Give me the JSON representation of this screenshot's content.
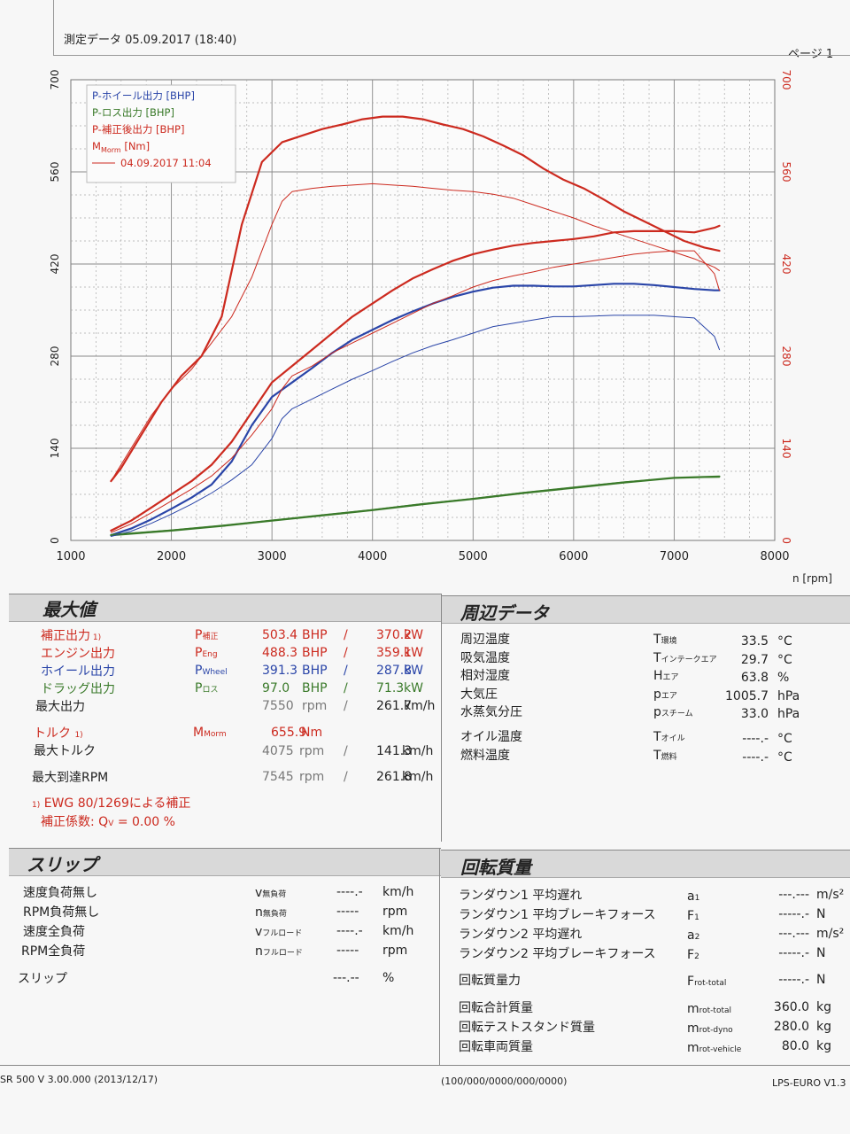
{
  "header": {
    "measure_date": "測定データ 05.09.2017 (18:40)",
    "page": "ページ 1"
  },
  "chart_data": {
    "type": "line",
    "xlabel": "n [rpm]",
    "xlim": [
      1000,
      8000
    ],
    "x_ticks": [
      "1000",
      "2000",
      "3000",
      "4000",
      "5000",
      "6000",
      "7000",
      "8000"
    ],
    "ylim_left": [
      0,
      700
    ],
    "y_ticks_left": [
      "0",
      "140",
      "280",
      "420",
      "560",
      "700"
    ],
    "ylim_right": [
      0,
      700
    ],
    "y_ticks_right": [
      "0",
      "140",
      "280",
      "420",
      "560",
      "700"
    ],
    "grid": true,
    "legend_position": "top-left",
    "legend": [
      {
        "label": "P-ホイール出力 [BHP]",
        "color": "#2a45a8"
      },
      {
        "label": "P-ロス出力 [BHP]",
        "color": "#3a7a2a"
      },
      {
        "label": "P-補正後出力 [BHP]",
        "color": "#cc2a1f"
      },
      {
        "label": "M",
        "sub": "Morm",
        "suffix": " [Nm]",
        "color": "#cc2a1f"
      },
      {
        "label": "04.09.2017 11:04",
        "color": "#cc2a1f",
        "line": true
      }
    ],
    "series": [
      {
        "name": "P-補正後出力 [BHP]",
        "color": "#cc2a1f",
        "width": 2.2,
        "x": [
          1400,
          1600,
          1800,
          2000,
          2200,
          2400,
          2600,
          2800,
          3000,
          3200,
          3400,
          3600,
          3800,
          4000,
          4200,
          4400,
          4600,
          4800,
          5000,
          5200,
          5400,
          5600,
          5800,
          6000,
          6200,
          6400,
          6600,
          6800,
          7000,
          7200,
          7400,
          7450
        ],
        "y": [
          15,
          30,
          50,
          70,
          90,
          115,
          150,
          195,
          240,
          265,
          290,
          315,
          340,
          360,
          380,
          398,
          412,
          425,
          435,
          442,
          448,
          452,
          455,
          458,
          462,
          468,
          470,
          470,
          470,
          468,
          475,
          478
        ]
      },
      {
        "name": "P-ホイール出力 [BHP]",
        "color": "#2a45a8",
        "width": 2.2,
        "x": [
          1400,
          1600,
          1800,
          2000,
          2200,
          2400,
          2600,
          2800,
          3000,
          3200,
          3400,
          3600,
          3800,
          4000,
          4200,
          4400,
          4600,
          4800,
          5000,
          5200,
          5400,
          5600,
          5800,
          6000,
          6200,
          6400,
          6600,
          6800,
          7000,
          7200,
          7400,
          7450
        ],
        "y": [
          8,
          18,
          32,
          48,
          65,
          85,
          120,
          175,
          218,
          240,
          262,
          285,
          305,
          320,
          335,
          348,
          360,
          370,
          378,
          384,
          387,
          387,
          386,
          386,
          388,
          390,
          390,
          388,
          385,
          382,
          380,
          380
        ]
      },
      {
        "name": "P-ロス出力 [BHP]",
        "color": "#3a7a2a",
        "width": 2.2,
        "x": [
          1400,
          2000,
          2500,
          3000,
          3500,
          4000,
          4500,
          5000,
          5500,
          6000,
          6500,
          7000,
          7450
        ],
        "y": [
          8,
          15,
          22,
          30,
          38,
          46,
          55,
          63,
          72,
          80,
          88,
          95,
          97
        ]
      },
      {
        "name": "M [Nm]",
        "color": "#cc2a1f",
        "width": 2.2,
        "x": [
          1400,
          1500,
          1700,
          1900,
          2100,
          2300,
          2500,
          2700,
          2900,
          3100,
          3300,
          3500,
          3700,
          3900,
          4100,
          4300,
          4500,
          4700,
          4900,
          5100,
          5300,
          5500,
          5700,
          5900,
          6100,
          6300,
          6500,
          6700,
          6900,
          7100,
          7300,
          7450
        ],
        "y": [
          90,
          110,
          160,
          210,
          250,
          280,
          340,
          480,
          575,
          605,
          615,
          625,
          632,
          640,
          644,
          644,
          640,
          632,
          625,
          614,
          600,
          585,
          565,
          548,
          535,
          518,
          500,
          485,
          470,
          455,
          445,
          440
        ]
      },
      {
        "name": "04.09.2017 11:04 P",
        "color": "#cc2a1f",
        "width": 1,
        "x": [
          1400,
          1600,
          1800,
          2000,
          2200,
          2400,
          2600,
          2800,
          3000,
          3100,
          3200,
          3400,
          3600,
          3800,
          4000,
          4200,
          4400,
          4600,
          4800,
          5000,
          5200,
          5400,
          5600,
          5800,
          6000,
          6200,
          6400,
          6600,
          6800,
          7000,
          7200,
          7400,
          7450
        ],
        "y": [
          12,
          25,
          42,
          60,
          78,
          98,
          125,
          160,
          200,
          230,
          250,
          265,
          285,
          300,
          315,
          330,
          345,
          360,
          372,
          385,
          395,
          402,
          408,
          415,
          420,
          425,
          430,
          435,
          438,
          440,
          440,
          405,
          380
        ]
      },
      {
        "name": "04.09.2017 11:04 Wheel",
        "color": "#2a45a8",
        "width": 1,
        "x": [
          1400,
          1600,
          1800,
          2000,
          2200,
          2400,
          2600,
          2800,
          3000,
          3100,
          3200,
          3400,
          3600,
          3800,
          4000,
          4200,
          4400,
          4600,
          4800,
          5000,
          5200,
          5400,
          5600,
          5800,
          6000,
          6200,
          6400,
          6600,
          6800,
          7000,
          7200,
          7400,
          7450
        ],
        "y": [
          6,
          14,
          26,
          40,
          55,
          72,
          92,
          115,
          155,
          185,
          200,
          215,
          230,
          245,
          258,
          272,
          285,
          296,
          305,
          315,
          325,
          330,
          335,
          340,
          340,
          341,
          342,
          342,
          342,
          340,
          338,
          310,
          290
        ]
      },
      {
        "name": "04.09.2017 11:04 Loss",
        "color": "#3a7a2a",
        "width": 1,
        "x": [
          1400,
          2000,
          2500,
          3000,
          3500,
          4000,
          4500,
          5000,
          5500,
          6000,
          6500,
          7000,
          7450
        ],
        "y": [
          9,
          16,
          23,
          31,
          39,
          47,
          56,
          64,
          73,
          81,
          89,
          95,
          96
        ]
      },
      {
        "name": "04.09.2017 11:04 M",
        "color": "#cc2a1f",
        "width": 1,
        "x": [
          1400,
          1600,
          1800,
          2000,
          2200,
          2400,
          2600,
          2800,
          3000,
          3100,
          3200,
          3400,
          3600,
          3800,
          4000,
          4200,
          4400,
          4600,
          4800,
          5000,
          5200,
          5400,
          5600,
          5800,
          6000,
          6200,
          6400,
          6600,
          6800,
          7000,
          7200,
          7400,
          7450
        ],
        "y": [
          90,
          140,
          190,
          230,
          260,
          300,
          340,
          400,
          480,
          515,
          530,
          535,
          538,
          540,
          542,
          540,
          538,
          535,
          532,
          530,
          526,
          520,
          510,
          500,
          490,
          478,
          468,
          458,
          448,
          438,
          428,
          415,
          410
        ]
      }
    ]
  },
  "max_values": {
    "title": "最大値",
    "rows": [
      {
        "label": "補正出力",
        "note": "1)",
        "sym": "P",
        "sym_sub": "補正",
        "v1": "503.4",
        "u1": "BHP",
        "sep": "/",
        "v2": "370.2",
        "u2": "kW",
        "color": "red"
      },
      {
        "label": "エンジン出力",
        "note": "",
        "sym": "P",
        "sym_sub": "Eng",
        "v1": "488.3",
        "u1": "BHP",
        "sep": "/",
        "v2": "359.1",
        "u2": "kW",
        "color": "red"
      },
      {
        "label": "ホイール出力",
        "note": "",
        "sym": "P",
        "sym_sub": "Wheel",
        "v1": "391.3",
        "u1": "BHP",
        "sep": "/",
        "v2": "287.8",
        "u2": "kW",
        "color": "blue"
      },
      {
        "label": "ドラッグ出力",
        "note": "",
        "sym": "P",
        "sym_sub": "ロス",
        "v1": "97.0",
        "u1": "BHP",
        "sep": "/",
        "v2": "71.3",
        "u2": "kW",
        "color": "green"
      },
      {
        "label": "最大出力",
        "note": "",
        "sym": "",
        "sym_sub": "",
        "v1": "7550",
        "u1": "rpm",
        "sep": "/",
        "v2": "261.7",
        "u2": "km/h",
        "color": "plain"
      }
    ],
    "torque_label": "トルク",
    "torque_note": "1)",
    "torque_sym": "M",
    "torque_sub": "Morm",
    "torque_value": "655.9",
    "torque_unit": "Nm",
    "max_torque_label": "最大トルク",
    "max_torque_rpm": "4075",
    "max_torque_rpm_unit": "rpm",
    "max_torque_speed": "141.3",
    "max_torque_speed_unit": "km/h",
    "max_rpm_label": "最大到達RPM",
    "max_rpm": "7545",
    "max_rpm_unit": "rpm",
    "max_rpm_speed": "261.8",
    "max_rpm_speed_unit": "km/h",
    "sep": "/",
    "footnote_marker": "1)",
    "footnote": "EWG 80/1269による補正",
    "corr_label": "補正係数: Q",
    "corr_sub": "V",
    "corr_value": "=   0.00 %"
  },
  "ambient": {
    "title": "周辺データ",
    "rows": [
      {
        "label": "周辺温度",
        "sym": "T",
        "sub": "環境",
        "value": "33.5",
        "unit": "°C"
      },
      {
        "label": "吸気温度",
        "sym": "T",
        "sub": "インテークエア",
        "value": "29.7",
        "unit": "°C"
      },
      {
        "label": "相対湿度",
        "sym": "H",
        "sub": "エア",
        "value": "63.8",
        "unit": "%"
      },
      {
        "label": "大気圧",
        "sym": "p",
        "sub": "エア",
        "value": "1005.7",
        "unit": "hPa"
      },
      {
        "label": "水蒸気分圧",
        "sym": "p",
        "sub": "スチーム",
        "value": "33.0",
        "unit": "hPa"
      },
      {
        "label": "オイル温度",
        "sym": "T",
        "sub": "オイル",
        "value": "----.-",
        "unit": "°C"
      },
      {
        "label": "燃料温度",
        "sym": "T",
        "sub": "燃料",
        "value": "----.-",
        "unit": "°C"
      }
    ]
  },
  "slip": {
    "title": "スリップ",
    "rows": [
      {
        "label": "速度負荷無し",
        "sym": "v",
        "sub": "無負荷",
        "value": "----.-",
        "unit": "km/h"
      },
      {
        "label": "RPM負荷無し",
        "sym": "n",
        "sub": "無負荷",
        "value": "-----",
        "unit": "rpm"
      },
      {
        "label": "速度全負荷",
        "sym": "v",
        "sub": "フルロード",
        "value": "----.-",
        "unit": "km/h"
      },
      {
        "label": "RPM全負荷",
        "sym": "n",
        "sub": "フルロード",
        "value": "-----",
        "unit": "rpm"
      }
    ],
    "slip_label": "スリップ",
    "slip_value": "---.--",
    "slip_unit": "%"
  },
  "rotating": {
    "title": "回転質量",
    "rows": [
      {
        "label": "ランダウン1  平均遅れ",
        "sym": "a",
        "sub": "1",
        "value": "---.---",
        "unit": "m/s²"
      },
      {
        "label": "ランダウン1  平均ブレーキフォース",
        "sym": "F",
        "sub": "1",
        "value": "-----.-",
        "unit": "N"
      },
      {
        "label": "ランダウン2  平均遅れ",
        "sym": "a",
        "sub": "2",
        "value": "---.---",
        "unit": "m/s²"
      },
      {
        "label": "ランダウン2  平均ブレーキフォース",
        "sym": "F",
        "sub": "2",
        "value": "-----.-",
        "unit": "N"
      },
      {
        "label": "回転質量力",
        "sym": "F",
        "sub": "rot-total",
        "value": "-----.-",
        "unit": "N"
      },
      {
        "label": "回転合計質量",
        "sym": "m",
        "sub": "rot-total",
        "value": "360.0",
        "unit": "kg"
      },
      {
        "label": "回転テストスタンド質量",
        "sym": "m",
        "sub": "rot-dyno",
        "value": "280.0",
        "unit": "kg"
      },
      {
        "label": "回転車両質量",
        "sym": "m",
        "sub": "rot-vehicle",
        "value": "80.0",
        "unit": "kg"
      }
    ]
  },
  "footer": {
    "left": "SR 500 V 3.00.000 (2013/12/17)",
    "center": "(100/000/0000/000/0000)",
    "right": "LPS-EURO V1.3"
  }
}
